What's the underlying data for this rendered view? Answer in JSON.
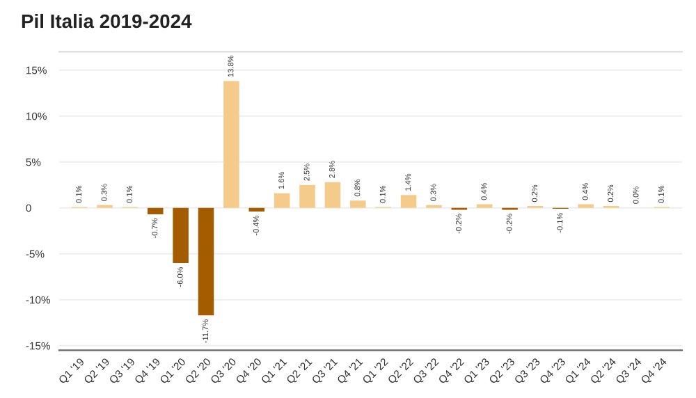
{
  "chart_data": {
    "type": "bar",
    "title": "Pil Italia 2019-2024",
    "categories": [
      "Q1 '19",
      "Q2 '19",
      "Q3 '19",
      "Q4 '19",
      "Q1 '20",
      "Q2 '20",
      "Q3 '20",
      "Q4 '20",
      "Q1 '21",
      "Q2 '21",
      "Q3 '21",
      "Q4 '21",
      "Q1 '22",
      "Q2 '22",
      "Q3 '22",
      "Q4 '22",
      "Q1 '23",
      "Q2 '23",
      "Q3 '23",
      "Q4 '23",
      "Q1 '24",
      "Q2 '24",
      "Q3 '24",
      "Q4 '24"
    ],
    "values": [
      0.1,
      0.3,
      0.1,
      -0.7,
      -6.0,
      -11.7,
      13.8,
      -0.4,
      1.6,
      2.5,
      2.8,
      0.8,
      0.1,
      1.4,
      0.3,
      -0.2,
      0.4,
      -0.2,
      0.2,
      -0.1,
      0.4,
      0.2,
      0.0,
      0.1
    ],
    "colors": [
      "#f5cb8c",
      "#f5cb8c",
      "#f5cb8c",
      "#a35c00",
      "#a35c00",
      "#a35c00",
      "#f5cb8c",
      "#a35c00",
      "#f5cb8c",
      "#f5cb8c",
      "#f5cb8c",
      "#f5cb8c",
      "#f5cb8c",
      "#f5cb8c",
      "#f5cb8c",
      "#a35c00",
      "#f5cb8c",
      "#a35c00",
      "#f5cb8c",
      "#a35c00",
      "#f5cb8c",
      "#f5cb8c",
      "#f5cb8c",
      "#f5cb8c"
    ],
    "value_labels": [
      "0.1%",
      "0.3%",
      "0.1%",
      "-0.7%",
      "-6.0%",
      "-11.7%",
      "13.8%",
      "-0.4%",
      "1.6%",
      "2.5%",
      "2.8%",
      "0.8%",
      "0.1%",
      "1.4%",
      "0.3%",
      "-0.2%",
      "0.4%",
      "-0.2%",
      "0.2%",
      "-0.1%",
      "0.4%",
      "0.2%",
      "0.0%",
      "0.1%"
    ],
    "ylim": [
      -15.5,
      17
    ],
    "yticks": [
      {
        "value": -15,
        "label": "-15%"
      },
      {
        "value": -10,
        "label": "-10%"
      },
      {
        "value": -5,
        "label": "-5%"
      },
      0,
      {
        "value": 5,
        "label": "5%"
      },
      {
        "value": 10,
        "label": "10%"
      },
      {
        "value": 15,
        "label": "15%"
      }
    ],
    "grid": "y",
    "legend": false
  }
}
